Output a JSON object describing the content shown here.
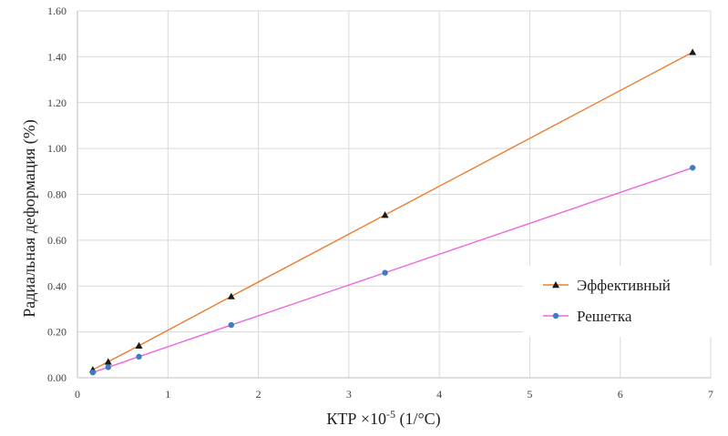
{
  "chart_data": {
    "type": "line",
    "title": "",
    "xlabel": "КТР ×10",
    "xlabel_superscript": "-5",
    "xlabel_suffix": " (1/°C)",
    "ylabel": "Радиальная деформация (%)",
    "xlim": [
      0,
      7
    ],
    "ylim": [
      0,
      1.6
    ],
    "x_ticks": [
      0,
      1,
      2,
      3,
      4,
      5,
      6,
      7
    ],
    "x_tick_labels": [
      "0",
      "1",
      "2",
      "3",
      "4",
      "5",
      "6",
      "7"
    ],
    "y_ticks": [
      0,
      0.2,
      0.4,
      0.6,
      0.8,
      1.0,
      1.2,
      1.4,
      1.6
    ],
    "y_tick_labels": [
      "0.00",
      "0.20",
      "0.40",
      "0.60",
      "0.80",
      "1.00",
      "1.20",
      "1.40",
      "1.60"
    ],
    "grid": true,
    "legend_position": "right",
    "series": [
      {
        "name": "Эффективный",
        "line_color": "#ed7d31",
        "marker": "triangle",
        "marker_color": "#1a1a1a",
        "x": [
          0.17,
          0.34,
          0.68,
          1.7,
          3.4,
          6.8
        ],
        "y": [
          0.035,
          0.07,
          0.14,
          0.355,
          0.71,
          1.42
        ]
      },
      {
        "name": "Решетка",
        "line_color": "#ee66dd",
        "marker": "circle",
        "marker_color": "#3b7dc4",
        "x": [
          0.17,
          0.34,
          0.68,
          1.7,
          3.4,
          6.8
        ],
        "y": [
          0.023,
          0.046,
          0.092,
          0.23,
          0.458,
          0.916
        ]
      }
    ]
  },
  "colors": {
    "grid": "#d9d9d9",
    "axis": "#bfbfbf",
    "background": "#ffffff"
  }
}
